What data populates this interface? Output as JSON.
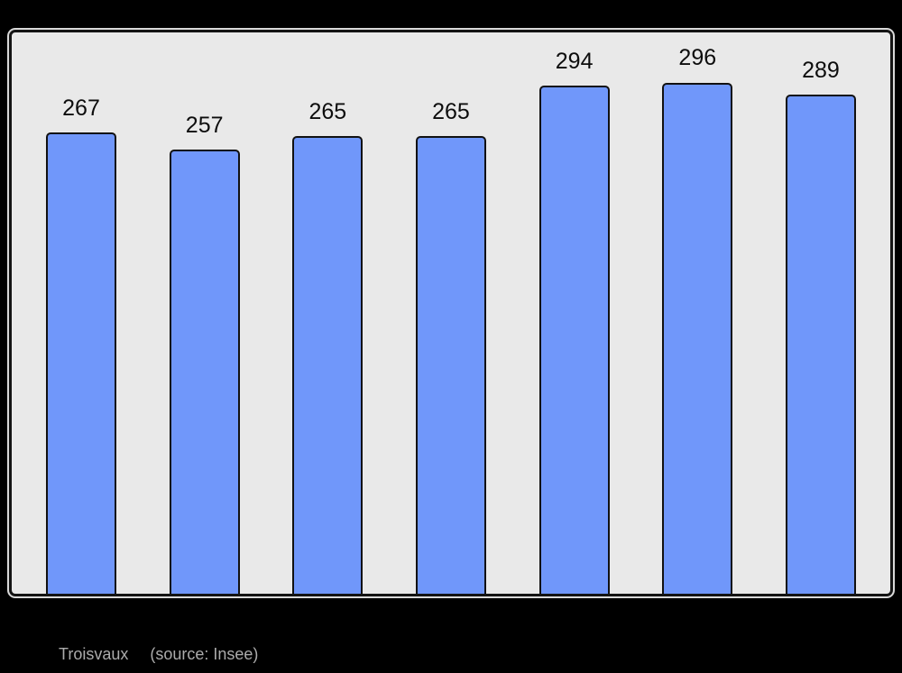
{
  "chart_data": {
    "type": "bar",
    "title": "",
    "xlabel": "",
    "ylabel": "",
    "values": [
      267,
      257,
      265,
      265,
      294,
      296,
      289
    ],
    "data_labels": [
      "267",
      "257",
      "265",
      "265",
      "294",
      "296",
      "289"
    ],
    "ylim": [
      0,
      325
    ],
    "grid": "off",
    "legend": "none",
    "bar_fill_color": "#7097fa",
    "bar_border_color": "#111111",
    "plot_background_color": "#e9e9e9",
    "page_background_color": "#000000",
    "label_color": "#0d0d0d"
  },
  "caption": {
    "commune": "Troisvaux",
    "source": "(source: Insee)",
    "text_color": "#ababab"
  }
}
